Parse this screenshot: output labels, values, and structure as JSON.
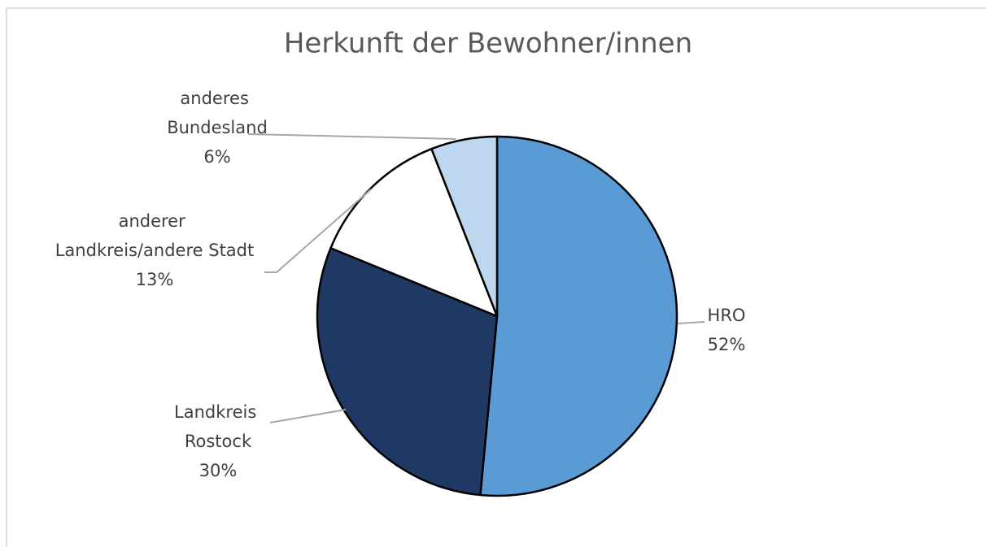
{
  "chart_data": {
    "type": "pie",
    "title": "Herkunft der Bewohner/innen",
    "categories": [
      "HRO",
      "Landkreis Rostock",
      "anderer Landkreis/andere Stadt",
      "anderes Bundesland"
    ],
    "values": [
      52,
      30,
      13,
      6
    ],
    "value_labels": [
      "52%",
      "30%",
      "13%",
      "6%"
    ],
    "colors": [
      "#5b9bd5",
      "#203864",
      "#ffffff",
      "#bdd7ee"
    ]
  }
}
